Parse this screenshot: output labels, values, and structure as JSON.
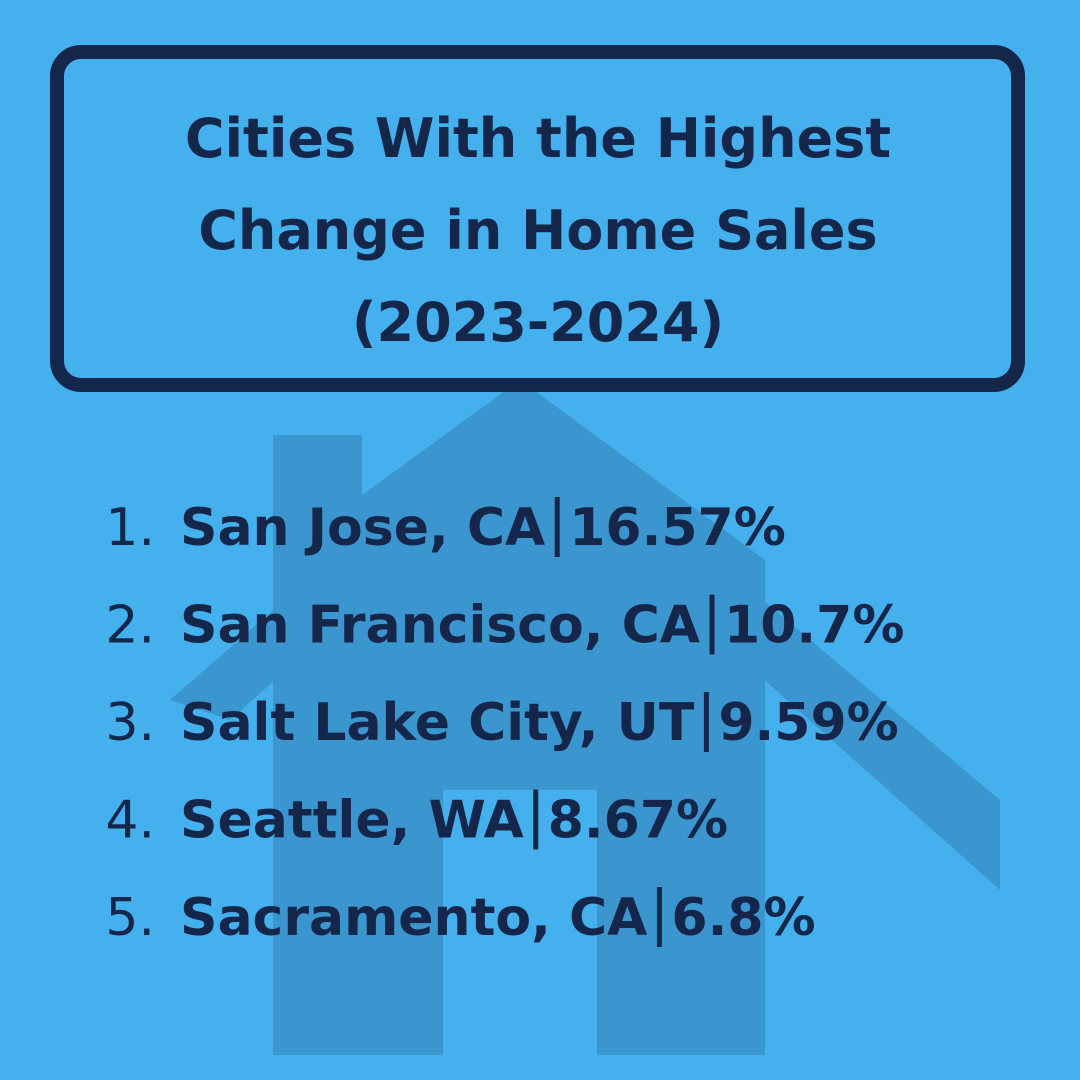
{
  "title_lines": [
    "Cities With the Highest",
    "Change in Home Sales",
    "(2023-2024)"
  ],
  "list": [
    {
      "marker": "1.",
      "city": "San Jose, CA",
      "value": "16.57%"
    },
    {
      "marker": "2.",
      "city": "San Francisco, CA",
      "value": "10.7%"
    },
    {
      "marker": "3.",
      "city": "Salt Lake City, UT",
      "value": "9.59%"
    },
    {
      "marker": "4.",
      "city": "Seattle, WA",
      "value": "8.67%"
    },
    {
      "marker": "5.",
      "city": "Sacramento, CA",
      "value": "6.8%"
    }
  ]
}
